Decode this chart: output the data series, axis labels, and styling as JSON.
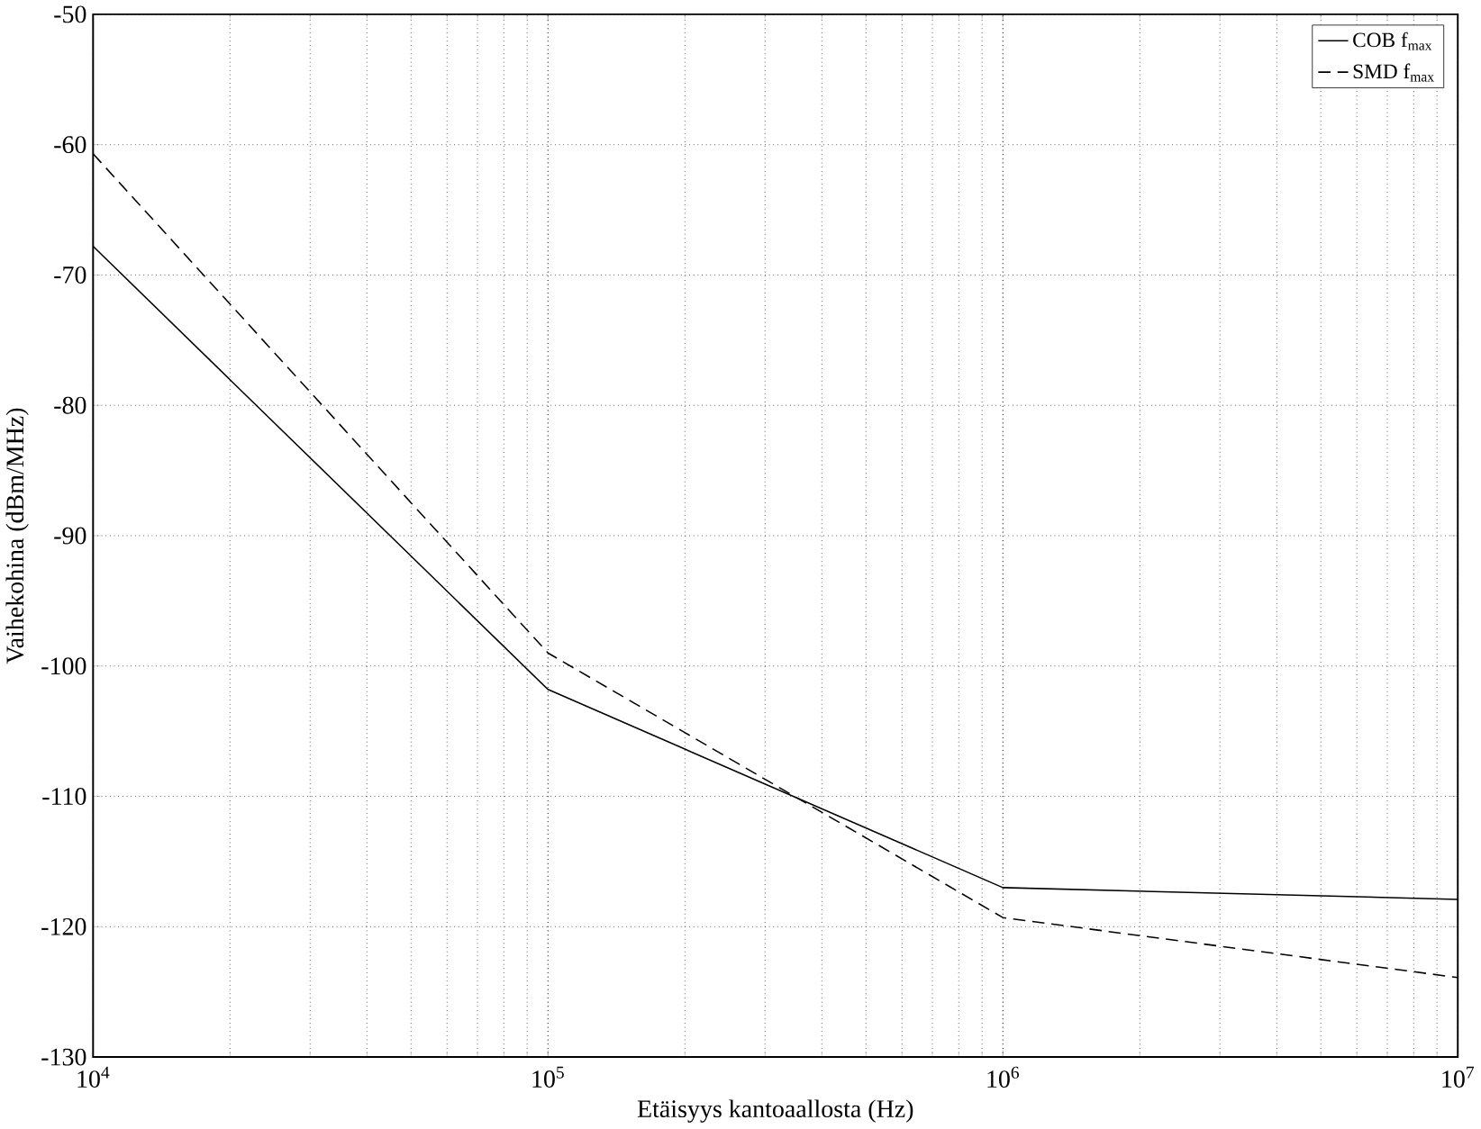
{
  "chart_data": {
    "type": "line",
    "xlabel": "Etäisyys kantoaallosta (Hz)",
    "ylabel": "Vaihekohina (dBm/MHz)",
    "log": "x",
    "grid": true,
    "legend": "top right",
    "xlim": [
      10000,
      10000000
    ],
    "ylim": [
      -130,
      -50
    ],
    "xticks": [
      {
        "value": 10000,
        "label": "10$^{4}$"
      },
      {
        "value": 100000,
        "label": "10$^{5}$"
      },
      {
        "value": 1000000,
        "label": "10$^{6}$"
      },
      {
        "value": 10000000,
        "label": "10$^{7}$"
      }
    ],
    "yticks": [
      -130,
      -120,
      -110,
      -100,
      -90,
      -80,
      -70,
      -60,
      -50
    ],
    "series": [
      {
        "name": "COB f$_{max}$",
        "color": "#000000",
        "line_style": "solid",
        "x": [
          10000,
          100000,
          1000000,
          10000000
        ],
        "values": [
          -67.8,
          -101.8,
          -117.0,
          -117.9
        ]
      },
      {
        "name": "SMD f$_{max}$",
        "color": "#000000",
        "line_style": "dashed",
        "x": [
          10000,
          100000,
          1000000,
          10000000
        ],
        "values": [
          -60.7,
          -99.0,
          -119.3,
          -123.9
        ]
      }
    ]
  }
}
